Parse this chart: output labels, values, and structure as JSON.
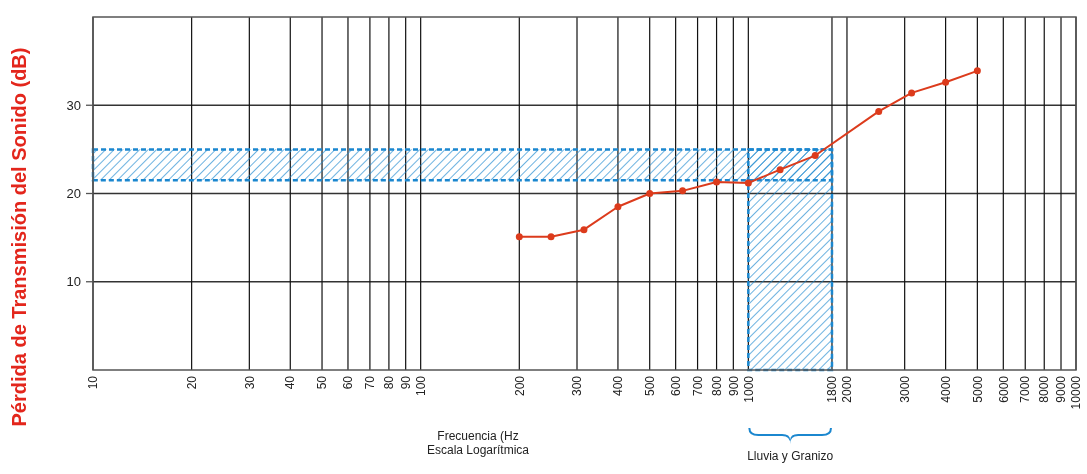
{
  "chart_data": {
    "type": "line",
    "xlabel": "Frecuencia (Hz\nEscala Logarítmica",
    "ylabel": "Pérdida de Transmisión del Sonido (dB)",
    "x": [
      200,
      250,
      315,
      400,
      500,
      630,
      800,
      1000,
      1250,
      1600,
      2500,
      3150,
      4000,
      5000
    ],
    "series": [
      {
        "color": "#dc3b1c",
        "values": [
          15.1,
          15.1,
          15.9,
          18.5,
          20.0,
          20.3,
          21.3,
          21.2,
          22.7,
          24.3,
          29.3,
          31.4,
          32.6,
          33.9
        ]
      }
    ],
    "log": "x",
    "xlim": [
      10,
      10000
    ],
    "xticks": [
      10,
      20,
      30,
      40,
      50,
      60,
      70,
      80,
      90,
      100,
      200,
      300,
      400,
      500,
      600,
      700,
      800,
      900,
      1000,
      1800,
      2000,
      3000,
      4000,
      5000,
      6000,
      7000,
      8000,
      9000,
      10000
    ],
    "ylim": [
      0,
      40
    ],
    "yticks": [
      10,
      20,
      30
    ],
    "grid": true,
    "marker": "circle",
    "line_style": "solid",
    "bands": [
      {
        "axis": "y",
        "from": 21.5,
        "to": 25,
        "color": "#1b87cf"
      },
      {
        "axis": "x",
        "from": 1000,
        "to": 1800,
        "color": "#1b87cf"
      }
    ],
    "annotations": [
      "Lluvia y Granizo"
    ]
  }
}
